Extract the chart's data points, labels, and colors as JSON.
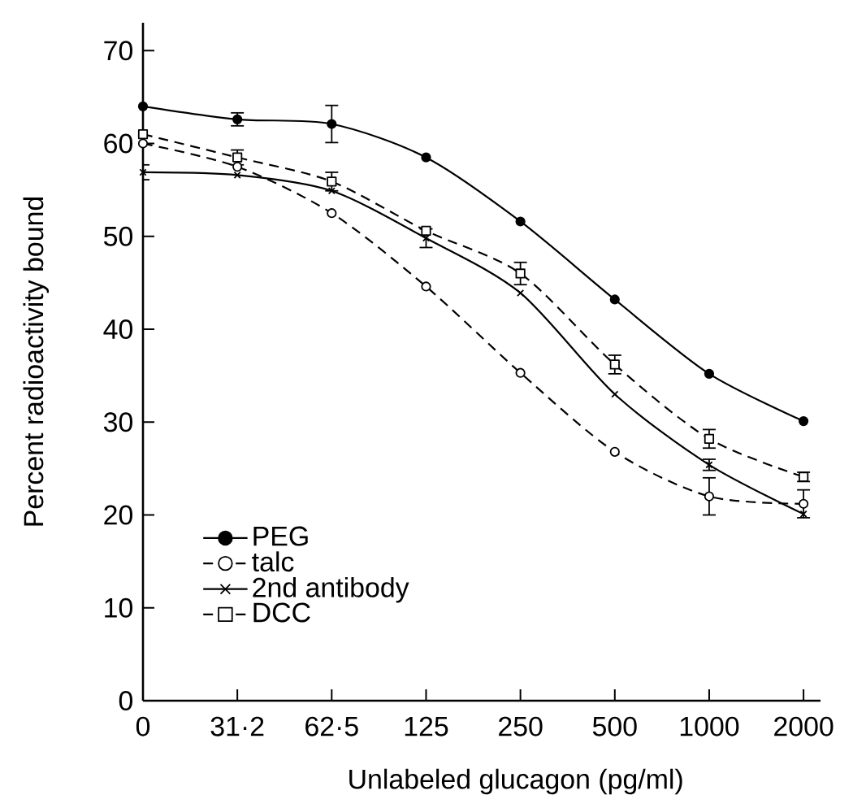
{
  "chart_data": {
    "type": "line",
    "xlabel": "Unlabeled glucagon        (pg/ml)",
    "ylabel": "Percent    radioactivity    bound",
    "categories": [
      "0",
      "31·2",
      "62·5",
      "125",
      "250",
      "500",
      "1000",
      "2000"
    ],
    "ylim": [
      0,
      73
    ],
    "yticks": [
      0,
      10,
      20,
      30,
      40,
      50,
      60,
      70
    ],
    "legend": "bottom left",
    "series": [
      {
        "name": "PEG",
        "color": "#000000",
        "marker": "circle",
        "line_style": "solid",
        "values": [
          64.0,
          62.6,
          62.1,
          58.5,
          51.6,
          43.2,
          35.2,
          30.1
        ],
        "errors": [
          null,
          0.7,
          2,
          null,
          null,
          null,
          null,
          null
        ]
      },
      {
        "name": "talc",
        "color": "#000000",
        "marker": "circle",
        "line_style": "dashed",
        "values": [
          60.0,
          57.5,
          52.5,
          44.6,
          35.3,
          26.8,
          22.0,
          21.2
        ],
        "errors": [
          null,
          null,
          null,
          null,
          null,
          null,
          2,
          1.5
        ]
      },
      {
        "name": "2nd antibody",
        "color": "#000000",
        "marker": "cross",
        "line_style": "solid",
        "values": [
          56.9,
          56.6,
          54.9,
          49.8,
          43.9,
          33.0,
          25.4,
          20.1
        ],
        "errors": [
          0.8,
          null,
          null,
          1,
          null,
          null,
          0.6,
          null
        ]
      },
      {
        "name": "DCC",
        "color": "#000000",
        "marker": "square",
        "line_style": "dashed",
        "values": [
          61.0,
          58.5,
          55.9,
          50.6,
          46.0,
          36.2,
          28.2,
          24.1
        ],
        "errors": [
          null,
          0.8,
          1,
          null,
          1.2,
          1,
          1,
          0.5
        ]
      }
    ]
  }
}
